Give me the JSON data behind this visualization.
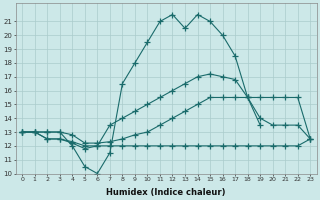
{
  "xlabel": "Humidex (Indice chaleur)",
  "background_color": "#cce8e8",
  "grid_color": "#aacccc",
  "line_color": "#1a6b6b",
  "xlim": [
    -0.5,
    23.5
  ],
  "ylim": [
    10,
    22
  ],
  "yticks": [
    10,
    11,
    12,
    13,
    14,
    15,
    16,
    17,
    18,
    19,
    20,
    21
  ],
  "xticks": [
    0,
    1,
    2,
    3,
    4,
    5,
    6,
    7,
    8,
    9,
    10,
    11,
    12,
    13,
    14,
    15,
    16,
    17,
    18,
    19,
    20,
    21,
    22,
    23
  ],
  "line1": {
    "x": [
      0,
      1,
      2,
      3,
      4,
      5,
      6,
      7,
      8,
      9,
      10,
      11,
      12,
      13,
      14,
      15,
      16,
      17,
      18,
      19
    ],
    "y": [
      13,
      13,
      13,
      13,
      12,
      10.5,
      10,
      11.5,
      16.5,
      18,
      19.5,
      21,
      21.5,
      20.5,
      21.5,
      21,
      20,
      18.5,
      15.5,
      13.5
    ]
  },
  "line2": {
    "x": [
      0,
      1,
      2,
      3,
      4,
      5,
      6,
      7,
      8,
      9,
      10,
      11,
      12,
      13,
      14,
      15,
      16,
      17,
      18,
      19,
      20,
      21,
      22,
      23
    ],
    "y": [
      13,
      13,
      12.5,
      12.5,
      12.2,
      11.8,
      12.0,
      13.5,
      14.0,
      14.5,
      15.0,
      15.5,
      16.0,
      16.5,
      17.0,
      17.2,
      17.0,
      16.8,
      15.5,
      14.0,
      13.5,
      13.5,
      13.5,
      12.5
    ]
  },
  "line3": {
    "x": [
      0,
      1,
      2,
      3,
      4,
      5,
      6,
      7,
      8,
      9,
      10,
      11,
      12,
      13,
      14,
      15,
      16,
      17,
      18,
      19,
      20,
      21,
      22,
      23
    ],
    "y": [
      13,
      13,
      13,
      13,
      12.8,
      12.2,
      12.2,
      12.3,
      12.5,
      12.8,
      13.0,
      13.5,
      14.0,
      14.5,
      15.0,
      15.5,
      15.5,
      15.5,
      15.5,
      15.5,
      15.5,
      15.5,
      15.5,
      12.5
    ]
  },
  "line4": {
    "x": [
      0,
      1,
      2,
      3,
      4,
      5,
      6,
      7,
      8,
      9,
      10,
      11,
      12,
      13,
      14,
      15,
      16,
      17,
      18,
      19,
      20,
      21,
      22,
      23
    ],
    "y": [
      13,
      13,
      12.5,
      12.5,
      12.3,
      12.0,
      12.0,
      12.0,
      12.0,
      12.0,
      12.0,
      12.0,
      12.0,
      12.0,
      12.0,
      12.0,
      12.0,
      12.0,
      12.0,
      12.0,
      12.0,
      12.0,
      12.0,
      12.5
    ]
  }
}
